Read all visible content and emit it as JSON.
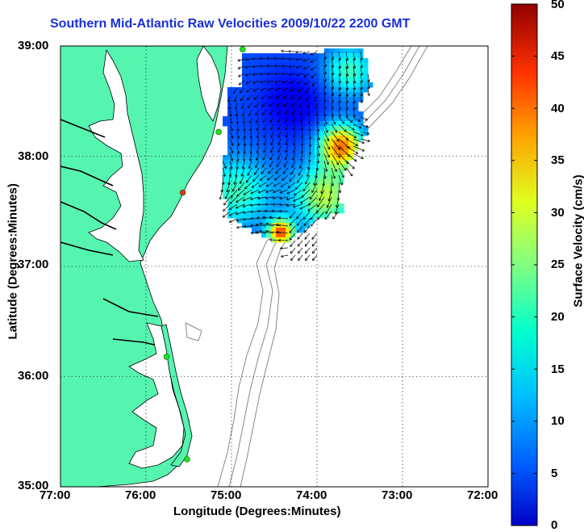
{
  "title": "Southern Mid-Atlantic Raw Velocities 2009/10/22 2200 GMT",
  "map": {
    "xlabel": "Longitude (Degrees:Minutes)",
    "ylabel": "Latitude (Degrees:Minutes)",
    "lon_ticks": [
      "77:00",
      "76:00",
      "75:00",
      "74:00",
      "73:00",
      "72:00"
    ],
    "lat_ticks": [
      "39:00",
      "38:00",
      "37:00",
      "36:00",
      "35:00"
    ],
    "lon_range": [
      -77,
      -72
    ],
    "lat_range": [
      35,
      39
    ],
    "land_color": "#55f5b0",
    "ocean_color": "#ffffff",
    "grid": "dotted",
    "stations": [
      {
        "lon": -74.87,
        "lat": 38.97,
        "color": "#22dd22"
      },
      {
        "lon": -75.15,
        "lat": 38.22,
        "color": "#22dd22"
      },
      {
        "lon": -75.57,
        "lat": 37.67,
        "color": "#e03020"
      },
      {
        "lon": -75.76,
        "lat": 36.18,
        "color": "#22dd22"
      },
      {
        "lon": -75.52,
        "lat": 35.25,
        "color": "#22dd22"
      }
    ]
  },
  "colorbar": {
    "label": "Surface Velocity (cm/s)",
    "ticks": [
      "0",
      "5",
      "10",
      "15",
      "20",
      "25",
      "30",
      "35",
      "40",
      "45",
      "50"
    ],
    "min": 0,
    "max": 50,
    "colormap": "jet"
  }
}
